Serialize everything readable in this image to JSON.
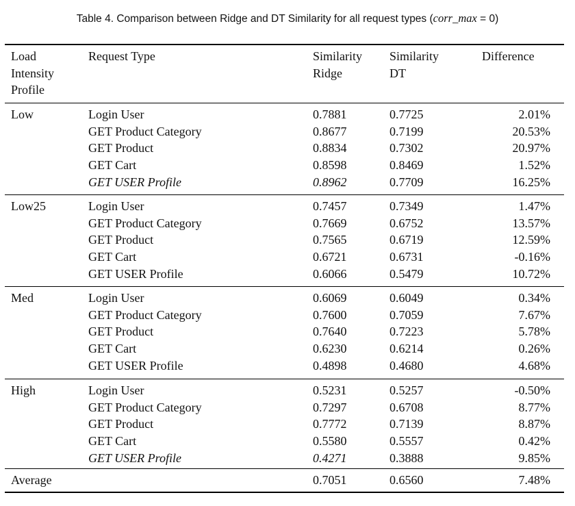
{
  "caption": {
    "text": "Table 4.  Comparison between Ridge and DT Similarity for all request types (",
    "math": "corr_max",
    "math_rest": " = 0)"
  },
  "header": {
    "load_profile": [
      "Load",
      "Intensity",
      "Profile"
    ],
    "request_type": "Request Type",
    "sim_ridge": [
      "Similarity",
      "Ridge"
    ],
    "sim_dt": [
      "Similarity",
      "DT"
    ],
    "difference": "Difference"
  },
  "groups": [
    {
      "profile": "Low",
      "rows": [
        {
          "request": "Login User",
          "ridge": "0.7881",
          "dt": "0.7725",
          "diff": "2.01%"
        },
        {
          "request": "GET Product Category",
          "ridge": "0.8677",
          "dt": "0.7199",
          "diff": "20.53%"
        },
        {
          "request": "GET Product",
          "ridge": "0.8834",
          "dt": "0.7302",
          "diff": "20.97%"
        },
        {
          "request": "GET Cart",
          "ridge": "0.8598",
          "dt": "0.8469",
          "diff": "1.52%"
        },
        {
          "request": "GET USER Profile",
          "ridge": "0.8962",
          "dt": "0.7709",
          "diff": "16.25%",
          "italic_request": true,
          "italic_ridge": true
        }
      ]
    },
    {
      "profile": "Low25",
      "rows": [
        {
          "request": "Login User",
          "ridge": "0.7457",
          "dt": "0.7349",
          "diff": "1.47%"
        },
        {
          "request": "GET Product Category",
          "ridge": "0.7669",
          "dt": "0.6752",
          "diff": "13.57%"
        },
        {
          "request": "GET Product",
          "ridge": "0.7565",
          "dt": "0.6719",
          "diff": "12.59%"
        },
        {
          "request": "GET Cart",
          "ridge": "0.6721",
          "dt": "0.6731",
          "diff": "-0.16%"
        },
        {
          "request": "GET USER Profile",
          "ridge": "0.6066",
          "dt": "0.5479",
          "diff": "10.72%"
        }
      ]
    },
    {
      "profile": "Med",
      "rows": [
        {
          "request": "Login User",
          "ridge": "0.6069",
          "dt": "0.6049",
          "diff": "0.34%"
        },
        {
          "request": "GET Product Category",
          "ridge": "0.7600",
          "dt": "0.7059",
          "diff": "7.67%"
        },
        {
          "request": "GET Product",
          "ridge": "0.7640",
          "dt": "0.7223",
          "diff": "5.78%"
        },
        {
          "request": "GET Cart",
          "ridge": "0.6230",
          "dt": "0.6214",
          "diff": "0.26%"
        },
        {
          "request": "GET USER Profile",
          "ridge": "0.4898",
          "dt": "0.4680",
          "diff": "4.68%"
        }
      ]
    },
    {
      "profile": "High",
      "rows": [
        {
          "request": "Login User",
          "ridge": "0.5231",
          "dt": "0.5257",
          "diff": "-0.50%"
        },
        {
          "request": "GET Product Category",
          "ridge": "0.7297",
          "dt": "0.6708",
          "diff": "8.77%"
        },
        {
          "request": "GET Product",
          "ridge": "0.7772",
          "dt": "0.7139",
          "diff": "8.87%"
        },
        {
          "request": "GET Cart",
          "ridge": "0.5580",
          "dt": "0.5557",
          "diff": "0.42%"
        },
        {
          "request": "GET USER Profile",
          "ridge": "0.4271",
          "dt": "0.3888",
          "diff": "9.85%",
          "italic_request": true,
          "italic_ridge": true
        }
      ]
    }
  ],
  "average": {
    "label": "Average",
    "ridge": "0.7051",
    "dt": "0.6560",
    "diff": "7.48%"
  }
}
